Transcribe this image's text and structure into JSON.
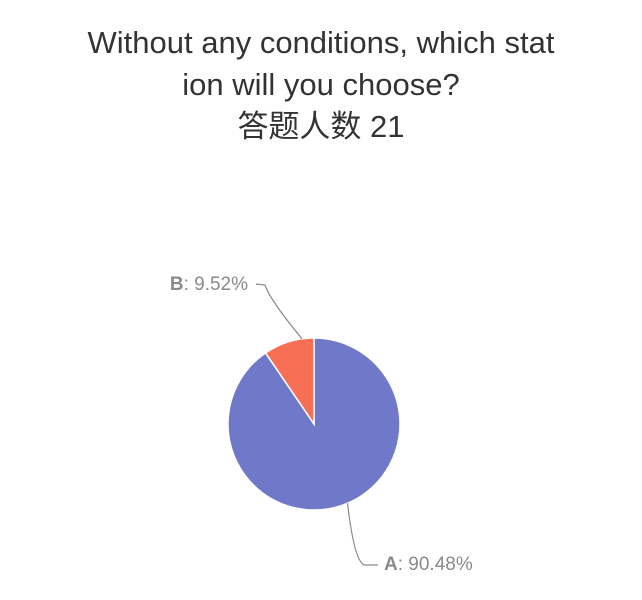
{
  "chart_data": {
    "type": "pie",
    "title_lines": [
      "Without any conditions, which stat",
      "ion will you choose?",
      "答题人数 21"
    ],
    "slices": [
      {
        "label": "A",
        "value": 90.48,
        "value_text": "90.48%",
        "color": "#7079c9"
      },
      {
        "label": "B",
        "value": 9.52,
        "value_text": "9.52%",
        "color": "#f77056"
      }
    ],
    "label_separator": ": ",
    "label_color": "#8a8a8a",
    "border_color": "#ffffff"
  }
}
